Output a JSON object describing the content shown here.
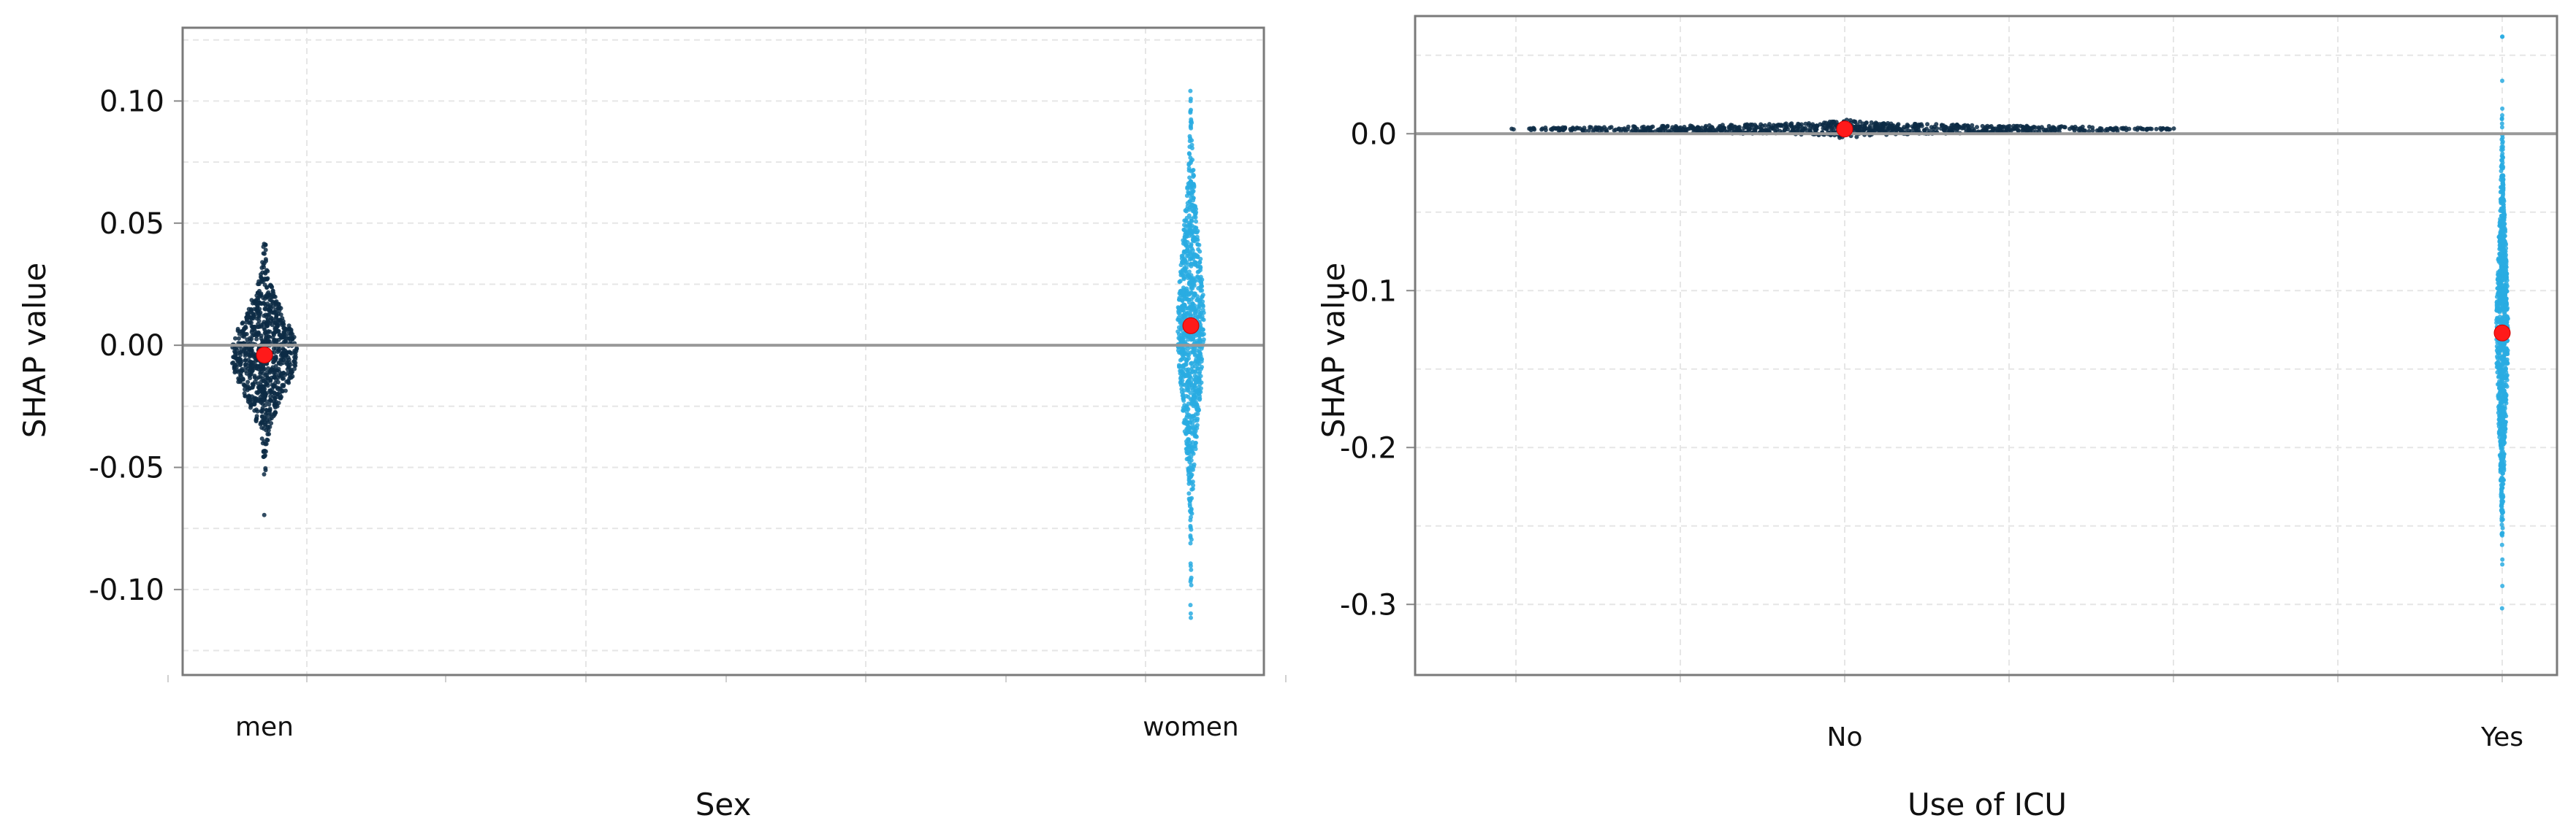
{
  "chart_data": [
    {
      "type": "scatter",
      "xlabel": "Sex",
      "ylabel": "SHAP value",
      "categories": [
        "men",
        "women"
      ],
      "ylim": [
        -0.135,
        0.13
      ],
      "yticks": [
        0.1,
        0.05,
        0.0,
        -0.05,
        -0.1
      ],
      "ytick_labels": [
        "0.10",
        "0.05",
        "0.00",
        "-0.05",
        "-0.10"
      ],
      "reference_line": 0,
      "grid": true,
      "series": [
        {
          "category": "men",
          "color": "#0d2b45",
          "min": -0.071,
          "max": 0.043,
          "mean": -0.004
        },
        {
          "category": "women",
          "color": "#29abe2",
          "min": -0.123,
          "max": 0.125,
          "mean": 0.008
        }
      ],
      "mean_marker_color": "#ff1a1a"
    },
    {
      "type": "scatter",
      "xlabel": "Use of ICU",
      "ylabel": "SHAP value",
      "categories": [
        "No",
        "Yes"
      ],
      "ylim": [
        -0.345,
        0.075
      ],
      "yticks": [
        0.0,
        -0.1,
        -0.2,
        -0.3
      ],
      "ytick_labels": [
        "0.0",
        "-0.1",
        "-0.2",
        "-0.3"
      ],
      "reference_line": 0,
      "grid": true,
      "series": [
        {
          "category": "No",
          "color": "#0d2b45",
          "min": -0.003,
          "max": 0.01,
          "mean": 0.003
        },
        {
          "category": "Yes",
          "color": "#29abe2",
          "min": -0.325,
          "max": 0.075,
          "mean": -0.127
        }
      ],
      "mean_marker_color": "#ff1a1a"
    }
  ]
}
